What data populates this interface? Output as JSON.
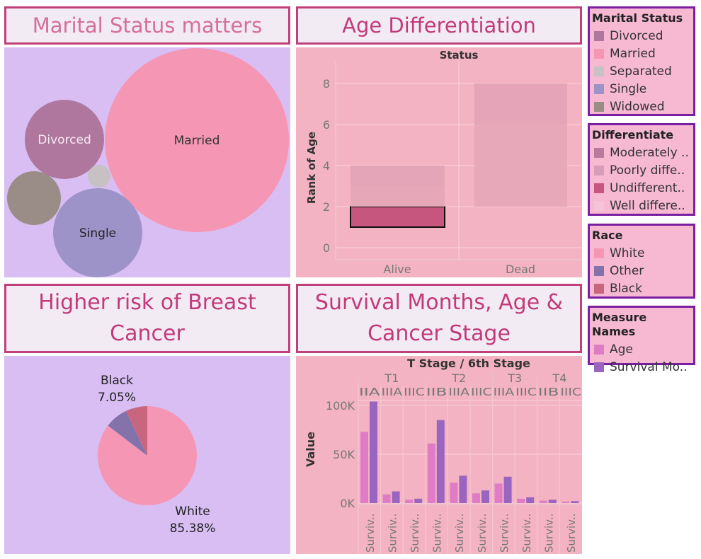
{
  "titles": {
    "marital": "Marital Status matters",
    "age": "Age Differentiation",
    "race": "Higher risk of Breast Cancer",
    "survival": "Survival Months, Age & Cancer Stage"
  },
  "legends": {
    "marital": {
      "title": "Marital Status",
      "items": [
        {
          "label": "Divorced",
          "color": "#b0779e"
        },
        {
          "label": "Married",
          "color": "#f597b4"
        },
        {
          "label": "Separated",
          "color": "#c7c1c4"
        },
        {
          "label": "Single",
          "color": "#9e93c8"
        },
        {
          "label": "Widowed",
          "color": "#9a8d87"
        }
      ]
    },
    "differentiate": {
      "title": "Differentiate",
      "items": [
        {
          "label": "Moderately ..",
          "color": "#b97a9e"
        },
        {
          "label": "Poorly diffe..",
          "color": "#d79cb9"
        },
        {
          "label": "Undifferent..",
          "color": "#c6567e"
        },
        {
          "label": "Well differe..",
          "color": "#f6c2d5"
        }
      ]
    },
    "race": {
      "title": "Race",
      "items": [
        {
          "label": "White",
          "color": "#f597b4"
        },
        {
          "label": "Other",
          "color": "#8473ab"
        },
        {
          "label": "Black",
          "color": "#c9667f"
        }
      ]
    },
    "measure": {
      "title": "Measure Names",
      "items": [
        {
          "label": "Age",
          "color": "#e07cc6"
        },
        {
          "label": "Survival Mo..",
          "color": "#9a65c0"
        }
      ]
    }
  },
  "chart_data": [
    {
      "type": "bubble",
      "bubbles": [
        {
          "label": "Married",
          "color": "#f597b4"
        },
        {
          "label": "Divorced",
          "color": "#b0779e"
        },
        {
          "label": "Single",
          "color": "#9e93c8"
        },
        {
          "label": "",
          "color": "#9a8d87"
        },
        {
          "label": "",
          "color": "#c7c1c4"
        }
      ]
    },
    {
      "type": "bar",
      "title": "Status",
      "ylabel": "Rank of Age",
      "categories": [
        "Alive",
        "Dead"
      ],
      "yticks": [
        0,
        2,
        4,
        6,
        8
      ],
      "ylim": [
        -0.5,
        9.2
      ],
      "segments": [
        {
          "category": "Alive",
          "from": 1,
          "to": 2,
          "color": "#c6567e",
          "selected": true
        },
        {
          "category": "Alive",
          "from": 2,
          "to": 3,
          "color": "#e6a7b9"
        },
        {
          "category": "Alive",
          "from": 3,
          "to": 4,
          "color": "#e4a5b9"
        },
        {
          "category": "Dead",
          "from": 2,
          "to": 6,
          "color": "#e7a8b9"
        },
        {
          "category": "Dead",
          "from": 6,
          "to": 8,
          "color": "#e5a4b7"
        }
      ]
    },
    {
      "type": "pie",
      "slices": [
        {
          "label": "White",
          "pct": "85.38%",
          "value": 85.38,
          "color": "#f597b4"
        },
        {
          "label": "Other",
          "pct": "",
          "value": 7.57,
          "color": "#8473ab"
        },
        {
          "label": "Black",
          "pct": "7.05%",
          "value": 7.05,
          "color": "#c9667f"
        }
      ]
    },
    {
      "type": "bar",
      "title": "T Stage  /  6th Stage",
      "ylabel": "Value",
      "yticks": [
        {
          "v": 0,
          "label": "0K"
        },
        {
          "v": 50000,
          "label": "50K"
        },
        {
          "v": 100000,
          "label": "100K"
        }
      ],
      "ylim": [
        -10000,
        110000
      ],
      "series": [
        "Age",
        "Survival Months"
      ],
      "xlabels": "Surviv..",
      "groups": [
        {
          "name": "T1",
          "cols": [
            {
              "stage": "IIA",
              "age": 73000,
              "surv": 104000
            },
            {
              "stage": "IIIA",
              "age": 9000,
              "surv": 12000
            },
            {
              "stage": "IIIC",
              "age": 3500,
              "surv": 4500
            }
          ]
        },
        {
          "name": "T2",
          "cols": [
            {
              "stage": "IIB",
              "age": 61000,
              "surv": 85000
            },
            {
              "stage": "IIIA",
              "age": 21000,
              "surv": 28000
            },
            {
              "stage": "IIIC",
              "age": 10000,
              "surv": 13000
            }
          ]
        },
        {
          "name": "T3",
          "cols": [
            {
              "stage": "IIIA",
              "age": 20000,
              "surv": 27000
            },
            {
              "stage": "IIIC",
              "age": 4500,
              "surv": 6000
            }
          ]
        },
        {
          "name": "T4",
          "cols": [
            {
              "stage": "IIB",
              "age": 2500,
              "surv": 3500
            },
            {
              "stage": "IIIC",
              "age": 1500,
              "surv": 2000
            }
          ]
        }
      ]
    }
  ]
}
